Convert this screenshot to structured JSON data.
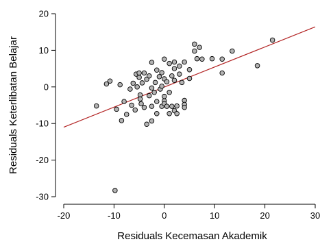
{
  "chart_data": {
    "type": "scatter",
    "title": "",
    "xlabel": "Residuals Kecemasan Akademik",
    "ylabel": "Residuals Keterlibatan Belajar",
    "xlim": [
      -20,
      30
    ],
    "ylim": [
      -30,
      20
    ],
    "x_ticks": [
      -20,
      -10,
      0,
      10,
      20,
      30
    ],
    "y_ticks": [
      -30,
      -20,
      -10,
      0,
      10,
      20
    ],
    "grid": false,
    "legend": "none",
    "point_color": "#b3b3b3",
    "point_stroke": "#000000",
    "line_color": "#b22222",
    "fit_line": {
      "x": [
        -20,
        30
      ],
      "y": [
        -11.0,
        16.4
      ]
    },
    "points": [
      {
        "x": -13.5,
        "y": -5.2
      },
      {
        "x": -11.5,
        "y": 0.8
      },
      {
        "x": -10.8,
        "y": 1.6
      },
      {
        "x": -9.8,
        "y": -28.3
      },
      {
        "x": -9.5,
        "y": -6.1
      },
      {
        "x": -8.8,
        "y": 0.6
      },
      {
        "x": -8.5,
        "y": -9.2
      },
      {
        "x": -8.0,
        "y": -4.0
      },
      {
        "x": -7.5,
        "y": -7.5
      },
      {
        "x": -6.8,
        "y": -0.6
      },
      {
        "x": -6.5,
        "y": -5.0
      },
      {
        "x": -6.2,
        "y": 1.0
      },
      {
        "x": -5.8,
        "y": -6.3
      },
      {
        "x": -5.6,
        "y": 3.5
      },
      {
        "x": -5.4,
        "y": 0.0
      },
      {
        "x": -5.0,
        "y": 3.8
      },
      {
        "x": -5.0,
        "y": 2.6
      },
      {
        "x": -4.8,
        "y": -2.2
      },
      {
        "x": -4.8,
        "y": -3.3
      },
      {
        "x": -4.6,
        "y": -4.6
      },
      {
        "x": -4.4,
        "y": 1.1
      },
      {
        "x": -4.0,
        "y": 3.8
      },
      {
        "x": -4.0,
        "y": -5.6
      },
      {
        "x": -3.5,
        "y": 2.1
      },
      {
        "x": -3.5,
        "y": -10.2
      },
      {
        "x": -3.0,
        "y": 3.0
      },
      {
        "x": -3.0,
        "y": -2.4
      },
      {
        "x": -2.5,
        "y": 6.7
      },
      {
        "x": -2.5,
        "y": -0.3
      },
      {
        "x": -2.5,
        "y": -5.3
      },
      {
        "x": -2.5,
        "y": -9.3
      },
      {
        "x": -2.0,
        "y": -1.5
      },
      {
        "x": -1.8,
        "y": 1.2
      },
      {
        "x": -1.5,
        "y": 4.6
      },
      {
        "x": -1.5,
        "y": -4.0
      },
      {
        "x": -1.5,
        "y": -7.3
      },
      {
        "x": -1.0,
        "y": 2.8
      },
      {
        "x": -0.8,
        "y": -0.6
      },
      {
        "x": -0.5,
        "y": 3.9
      },
      {
        "x": -0.5,
        "y": 0.2
      },
      {
        "x": -0.5,
        "y": -5.3
      },
      {
        "x": 0.0,
        "y": 7.6
      },
      {
        "x": 0.0,
        "y": 2.2
      },
      {
        "x": 0.0,
        "y": -2.6
      },
      {
        "x": 0.0,
        "y": -3.8
      },
      {
        "x": 0.0,
        "y": -4.6
      },
      {
        "x": 0.5,
        "y": 1.4
      },
      {
        "x": 0.5,
        "y": -5.3
      },
      {
        "x": 1.0,
        "y": 6.4
      },
      {
        "x": 1.0,
        "y": -1.5
      },
      {
        "x": 1.0,
        "y": -7.3
      },
      {
        "x": 1.5,
        "y": 3.0
      },
      {
        "x": 1.5,
        "y": -5.3
      },
      {
        "x": 2.0,
        "y": 6.8
      },
      {
        "x": 2.0,
        "y": 5.0
      },
      {
        "x": 2.0,
        "y": 1.8
      },
      {
        "x": 2.0,
        "y": -6.5
      },
      {
        "x": 2.5,
        "y": -5.2
      },
      {
        "x": 2.5,
        "y": -7.3
      },
      {
        "x": 3.0,
        "y": 5.7
      },
      {
        "x": 3.0,
        "y": 3.5
      },
      {
        "x": 3.5,
        "y": 1.2
      },
      {
        "x": 4.0,
        "y": 6.8
      },
      {
        "x": 4.0,
        "y": -3.7
      },
      {
        "x": 4.0,
        "y": -4.8
      },
      {
        "x": 4.0,
        "y": -5.6
      },
      {
        "x": 5.0,
        "y": 4.7
      },
      {
        "x": 5.0,
        "y": 2.3
      },
      {
        "x": 6.0,
        "y": 11.7
      },
      {
        "x": 6.0,
        "y": 9.8
      },
      {
        "x": 6.5,
        "y": 7.7
      },
      {
        "x": 7.0,
        "y": 10.8
      },
      {
        "x": 7.5,
        "y": 7.6
      },
      {
        "x": 9.5,
        "y": 7.7
      },
      {
        "x": 11.5,
        "y": 7.6
      },
      {
        "x": 11.5,
        "y": 3.8
      },
      {
        "x": 13.5,
        "y": 9.8
      },
      {
        "x": 18.5,
        "y": 5.8
      },
      {
        "x": 21.5,
        "y": 12.8
      }
    ]
  }
}
